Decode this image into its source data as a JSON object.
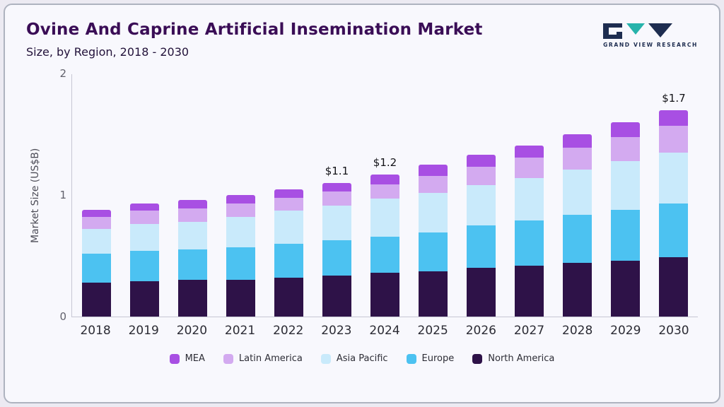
{
  "header": {
    "title": "Ovine And Caprine Artificial Insemination Market",
    "subtitle": "Size, by Region, 2018 - 2030"
  },
  "logo": {
    "text": "GRAND VIEW RESEARCH"
  },
  "chart_data": {
    "type": "bar",
    "stacked": true,
    "title": "Ovine And Caprine Artificial Insemination Market Size, by Region, 2018 - 2030",
    "ylabel": "Market Size (US$B)",
    "ylim": [
      0,
      2
    ],
    "yticks": [
      0,
      1,
      2
    ],
    "grid": false,
    "legend_position": "bottom",
    "categories": [
      "2018",
      "2019",
      "2020",
      "2021",
      "2022",
      "2023",
      "2024",
      "2025",
      "2026",
      "2027",
      "2028",
      "2029",
      "2030"
    ],
    "series": [
      {
        "name": "North America",
        "color": "#2e1248",
        "values": [
          0.28,
          0.29,
          0.3,
          0.3,
          0.32,
          0.34,
          0.36,
          0.37,
          0.4,
          0.42,
          0.44,
          0.46,
          0.49
        ]
      },
      {
        "name": "Europe",
        "color": "#4cc2f1",
        "values": [
          0.24,
          0.25,
          0.25,
          0.27,
          0.28,
          0.29,
          0.3,
          0.32,
          0.35,
          0.37,
          0.4,
          0.42,
          0.44
        ]
      },
      {
        "name": "Asia Pacific",
        "color": "#c9eafb",
        "values": [
          0.2,
          0.22,
          0.23,
          0.25,
          0.27,
          0.28,
          0.31,
          0.33,
          0.33,
          0.35,
          0.37,
          0.4,
          0.42
        ]
      },
      {
        "name": "Latin America",
        "color": "#d3aaf0",
        "values": [
          0.1,
          0.11,
          0.11,
          0.11,
          0.11,
          0.12,
          0.12,
          0.14,
          0.15,
          0.17,
          0.18,
          0.2,
          0.22
        ]
      },
      {
        "name": "MEA",
        "color": "#a84fe3",
        "values": [
          0.06,
          0.06,
          0.07,
          0.07,
          0.07,
          0.07,
          0.08,
          0.09,
          0.1,
          0.1,
          0.11,
          0.12,
          0.13
        ]
      }
    ],
    "totals": [
      0.88,
      0.93,
      0.96,
      1.0,
      1.05,
      1.1,
      1.17,
      1.25,
      1.33,
      1.41,
      1.5,
      1.6,
      1.7
    ],
    "annotations": [
      {
        "category": "2023",
        "label": "$1.1"
      },
      {
        "category": "2024",
        "label": "$1.2"
      },
      {
        "category": "2030",
        "label": "$1.7"
      }
    ],
    "legend": [
      "MEA",
      "Latin America",
      "Asia Pacific",
      "Europe",
      "North America"
    ]
  }
}
